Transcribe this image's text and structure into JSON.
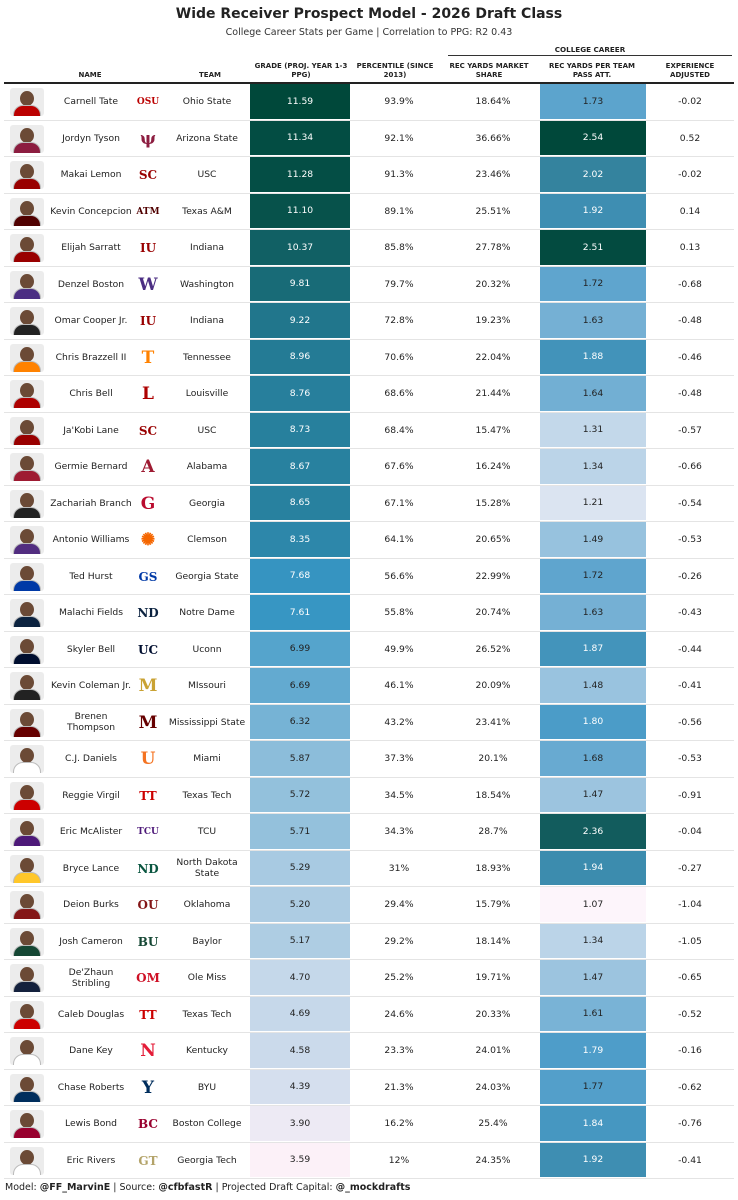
{
  "title": "Wide Receiver Prospect Model - 2026 Draft Class",
  "subtitle": "College Career Stats per Game | Correlation to PPG: R2 0.43",
  "spanner": "COLLEGE CAREER",
  "headers": {
    "name": "NAME",
    "team": "TEAM",
    "grade": "GRADE (PROJ. YEAR 1-3 PPG)",
    "percentile": "PERCENTILE (SINCE 2013)",
    "market_share": "REC YARDS MARKET SHARE",
    "ypa": "REC YARDS PER TEAM PASS ATT.",
    "experience": "EXPERIENCE ADJUSTED"
  },
  "footer": {
    "model_label": "Model: ",
    "model": "@FF_MarvinE",
    "source_label": " | Source: ",
    "source": "@cfbfastR",
    "capital_label": " | Projected Draft Capital: ",
    "capital": "@_mockdrafts"
  },
  "colors": {
    "grade_high": "#00483a",
    "grade_mid": "#3796c4",
    "grade_low": "#fcf1f8",
    "ypa_high": "#00483a",
    "ypa_mid": "#4a9bc8",
    "ypa_low": "#fdf5fb"
  },
  "chart_data": {
    "type": "table",
    "columns": [
      "NAME",
      "TEAM",
      "GRADE (PROJ. YEAR 1-3 PPG)",
      "PERCENTILE (SINCE 2013)",
      "REC YARDS MARKET SHARE",
      "REC YARDS PER TEAM PASS ATT.",
      "EXPERIENCE ADJUSTED"
    ],
    "rows": [
      {
        "name": "Carnell Tate",
        "team": "Ohio State",
        "grade": "11.59",
        "percentile": "93.9%",
        "market_share": "18.64%",
        "ypa": "1.73",
        "experience": "-0.02",
        "logo": "ohio-state-logo",
        "logo_text": "OSU",
        "logo_color": "#bb0000",
        "jersey": "#bb0000"
      },
      {
        "name": "Jordyn Tyson",
        "team": "Arizona State",
        "grade": "11.34",
        "percentile": "92.1%",
        "market_share": "36.66%",
        "ypa": "2.54",
        "experience": "0.52",
        "logo": "arizona-state-logo",
        "logo_text": "ψ",
        "logo_color": "#8c1d40",
        "jersey": "#8c1d40"
      },
      {
        "name": "Makai Lemon",
        "team": "USC",
        "grade": "11.28",
        "percentile": "91.3%",
        "market_share": "23.46%",
        "ypa": "2.02",
        "experience": "-0.02",
        "logo": "usc-logo",
        "logo_text": "SC",
        "logo_color": "#990000",
        "jersey": "#990000"
      },
      {
        "name": "Kevin Concepcion",
        "team": "Texas A&M",
        "grade": "11.10",
        "percentile": "89.1%",
        "market_share": "25.51%",
        "ypa": "1.92",
        "experience": "0.14",
        "logo": "texas-am-logo",
        "logo_text": "ATM",
        "logo_color": "#500000",
        "jersey": "#500000"
      },
      {
        "name": "Elijah Sarratt",
        "team": "Indiana",
        "grade": "10.37",
        "percentile": "85.8%",
        "market_share": "27.78%",
        "ypa": "2.51",
        "experience": "0.13",
        "logo": "indiana-logo",
        "logo_text": "IU",
        "logo_color": "#990000",
        "jersey": "#990000"
      },
      {
        "name": "Denzel Boston",
        "team": "Washington",
        "grade": "9.81",
        "percentile": "79.7%",
        "market_share": "20.32%",
        "ypa": "1.72",
        "experience": "-0.68",
        "logo": "washington-logo",
        "logo_text": "W",
        "logo_color": "#4b2e83",
        "jersey": "#4b2e83"
      },
      {
        "name": "Omar Cooper Jr.",
        "team": "Indiana",
        "grade": "9.22",
        "percentile": "72.8%",
        "market_share": "19.23%",
        "ypa": "1.63",
        "experience": "-0.48",
        "logo": "indiana-logo",
        "logo_text": "IU",
        "logo_color": "#990000",
        "jersey": "#222222"
      },
      {
        "name": "Chris Brazzell II",
        "team": "Tennessee",
        "grade": "8.96",
        "percentile": "70.6%",
        "market_share": "22.04%",
        "ypa": "1.88",
        "experience": "-0.46",
        "logo": "tennessee-logo",
        "logo_text": "T",
        "logo_color": "#ff8200",
        "jersey": "#ff8200"
      },
      {
        "name": "Chris Bell",
        "team": "Louisville",
        "grade": "8.76",
        "percentile": "68.6%",
        "market_share": "21.44%",
        "ypa": "1.64",
        "experience": "-0.48",
        "logo": "louisville-logo",
        "logo_text": "L",
        "logo_color": "#ad0000",
        "jersey": "#ad0000"
      },
      {
        "name": "Ja'Kobi Lane",
        "team": "USC",
        "grade": "8.73",
        "percentile": "68.4%",
        "market_share": "15.47%",
        "ypa": "1.31",
        "experience": "-0.57",
        "logo": "usc-logo",
        "logo_text": "SC",
        "logo_color": "#990000",
        "jersey": "#990000"
      },
      {
        "name": "Germie Bernard",
        "team": "Alabama",
        "grade": "8.67",
        "percentile": "67.6%",
        "market_share": "16.24%",
        "ypa": "1.34",
        "experience": "-0.66",
        "logo": "alabama-logo",
        "logo_text": "A",
        "logo_color": "#9e1b32",
        "jersey": "#9e1b32"
      },
      {
        "name": "Zachariah Branch",
        "team": "Georgia",
        "grade": "8.65",
        "percentile": "67.1%",
        "market_share": "15.28%",
        "ypa": "1.21",
        "experience": "-0.54",
        "logo": "georgia-logo",
        "logo_text": "G",
        "logo_color": "#ba0c2f",
        "jersey": "#222222"
      },
      {
        "name": "Antonio Williams",
        "team": "Clemson",
        "grade": "8.35",
        "percentile": "64.1%",
        "market_share": "20.65%",
        "ypa": "1.49",
        "experience": "-0.53",
        "logo": "clemson-logo",
        "logo_text": "✺",
        "logo_color": "#f56600",
        "jersey": "#522d80"
      },
      {
        "name": "Ted Hurst",
        "team": "Georgia State",
        "grade": "7.68",
        "percentile": "56.6%",
        "market_share": "22.99%",
        "ypa": "1.72",
        "experience": "-0.26",
        "logo": "georgia-state-logo",
        "logo_text": "GS",
        "logo_color": "#0039a6",
        "jersey": "#0039a6"
      },
      {
        "name": "Malachi Fields",
        "team": "Notre Dame",
        "grade": "7.61",
        "percentile": "55.8%",
        "market_share": "20.74%",
        "ypa": "1.63",
        "experience": "-0.43",
        "logo": "notre-dame-logo",
        "logo_text": "ND",
        "logo_color": "#0c2340",
        "jersey": "#0c2340"
      },
      {
        "name": "Skyler Bell",
        "team": "Uconn",
        "grade": "6.99",
        "percentile": "49.9%",
        "market_share": "26.52%",
        "ypa": "1.87",
        "experience": "-0.44",
        "logo": "uconn-logo",
        "logo_text": "UC",
        "logo_color": "#000e2f",
        "jersey": "#000e2f"
      },
      {
        "name": "Kevin Coleman Jr.",
        "team": "MIssouri",
        "grade": "6.69",
        "percentile": "46.1%",
        "market_share": "20.09%",
        "ypa": "1.48",
        "experience": "-0.41",
        "logo": "missouri-logo",
        "logo_text": "M",
        "logo_color": "#c9a233",
        "jersey": "#222222"
      },
      {
        "name": "Brenen Thompson",
        "team": "Mississippi State",
        "grade": "6.32",
        "percentile": "43.2%",
        "market_share": "23.41%",
        "ypa": "1.80",
        "experience": "-0.56",
        "logo": "mississippi-state-logo",
        "logo_text": "M",
        "logo_color": "#660000",
        "jersey": "#660000"
      },
      {
        "name": "C.J. Daniels",
        "team": "Miami",
        "grade": "5.87",
        "percentile": "37.3%",
        "market_share": "20.1%",
        "ypa": "1.68",
        "experience": "-0.53",
        "logo": "miami-logo",
        "logo_text": "U",
        "logo_color": "#f47321",
        "jersey": "#ffffff"
      },
      {
        "name": "Reggie Virgil",
        "team": "Texas Tech",
        "grade": "5.72",
        "percentile": "34.5%",
        "market_share": "18.54%",
        "ypa": "1.47",
        "experience": "-0.91",
        "logo": "texas-tech-logo",
        "logo_text": "TT",
        "logo_color": "#cc0000",
        "jersey": "#cc0000"
      },
      {
        "name": "Eric McAlister",
        "team": "TCU",
        "grade": "5.71",
        "percentile": "34.3%",
        "market_share": "28.7%",
        "ypa": "2.36",
        "experience": "-0.04",
        "logo": "tcu-logo",
        "logo_text": "TCU",
        "logo_color": "#4d1979",
        "jersey": "#4d1979"
      },
      {
        "name": "Bryce Lance",
        "team": "North Dakota State",
        "grade": "5.29",
        "percentile": "31%",
        "market_share": "18.93%",
        "ypa": "1.94",
        "experience": "-0.27",
        "logo": "north-dakota-state-logo",
        "logo_text": "ND",
        "logo_color": "#0a5640",
        "jersey": "#ffc72a"
      },
      {
        "name": "Deion Burks",
        "team": "Oklahoma",
        "grade": "5.20",
        "percentile": "29.4%",
        "market_share": "15.79%",
        "ypa": "1.07",
        "experience": "-1.04",
        "logo": "oklahoma-logo",
        "logo_text": "OU",
        "logo_color": "#841617",
        "jersey": "#841617"
      },
      {
        "name": "Josh Cameron",
        "team": "Baylor",
        "grade": "5.17",
        "percentile": "29.2%",
        "market_share": "18.14%",
        "ypa": "1.34",
        "experience": "-1.05",
        "logo": "baylor-logo",
        "logo_text": "BU",
        "logo_color": "#154734",
        "jersey": "#154734"
      },
      {
        "name": "De'Zhaun Stribling",
        "team": "Ole Miss",
        "grade": "4.70",
        "percentile": "25.2%",
        "market_share": "19.71%",
        "ypa": "1.47",
        "experience": "-0.65",
        "logo": "ole-miss-logo",
        "logo_text": "OM",
        "logo_color": "#ce1126",
        "jersey": "#14213d"
      },
      {
        "name": "Caleb Douglas",
        "team": "Texas Tech",
        "grade": "4.69",
        "percentile": "24.6%",
        "market_share": "20.33%",
        "ypa": "1.61",
        "experience": "-0.52",
        "logo": "texas-tech-logo",
        "logo_text": "TT",
        "logo_color": "#cc0000",
        "jersey": "#cc0000"
      },
      {
        "name": "Dane Key",
        "team": "Kentucky",
        "grade": "4.58",
        "percentile": "23.3%",
        "market_share": "24.01%",
        "ypa": "1.79",
        "experience": "-0.16",
        "logo": "nebraska-logo",
        "logo_text": "N",
        "logo_color": "#e41c38",
        "jersey": "#ffffff"
      },
      {
        "name": "Chase Roberts",
        "team": "BYU",
        "grade": "4.39",
        "percentile": "21.3%",
        "market_share": "24.03%",
        "ypa": "1.77",
        "experience": "-0.62",
        "logo": "byu-logo",
        "logo_text": "Y",
        "logo_color": "#002e5d",
        "jersey": "#002e5d"
      },
      {
        "name": "Lewis Bond",
        "team": "Boston College",
        "grade": "3.90",
        "percentile": "16.2%",
        "market_share": "25.4%",
        "ypa": "1.84",
        "experience": "-0.76",
        "logo": "boston-college-logo",
        "logo_text": "BC",
        "logo_color": "#98002e",
        "jersey": "#98002e"
      },
      {
        "name": "Eric Rivers",
        "team": "Georgia Tech",
        "grade": "3.59",
        "percentile": "12%",
        "market_share": "24.35%",
        "ypa": "1.92",
        "experience": "-0.41",
        "logo": "georgia-tech-logo",
        "logo_text": "GT",
        "logo_color": "#b3a369",
        "jersey": "#ffffff"
      }
    ]
  }
}
